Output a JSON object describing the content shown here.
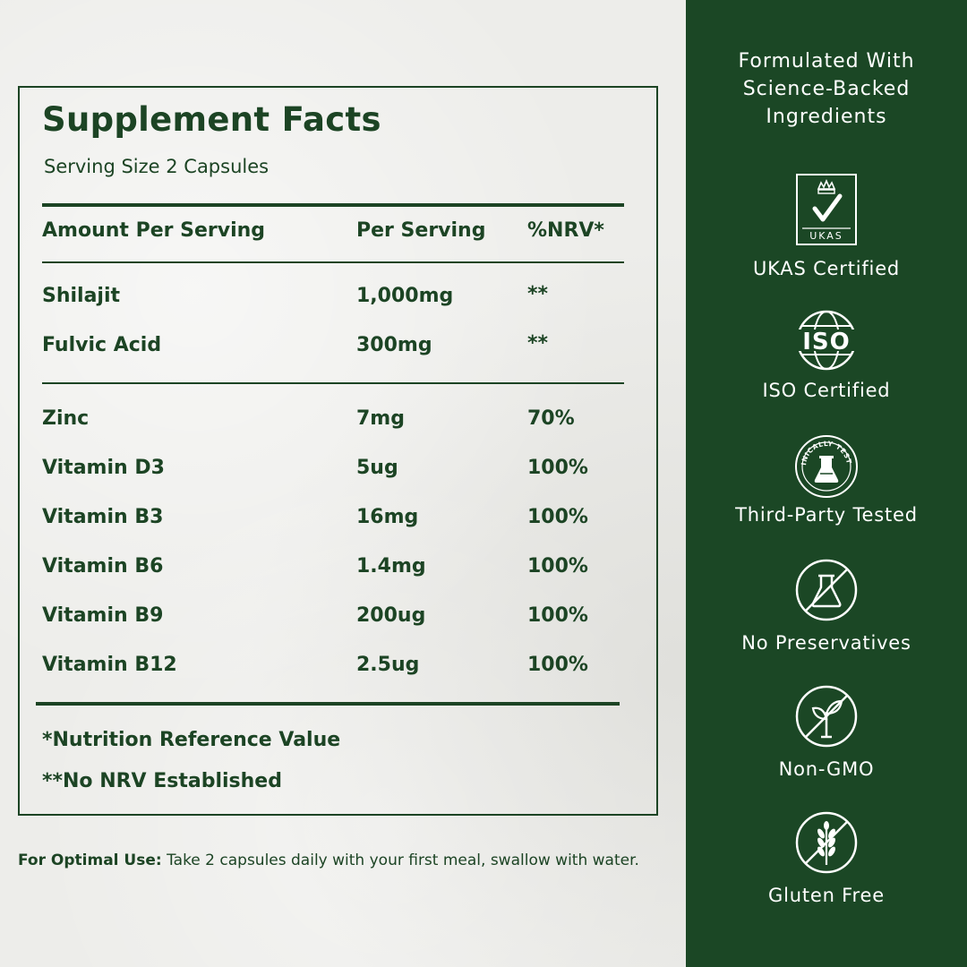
{
  "facts": {
    "title": "Supplement Facts",
    "serving_size": "Serving Size 2 Capsules",
    "headers": [
      "Amount Per Serving",
      "Per Serving",
      "%NRV*"
    ],
    "group1": [
      {
        "name": "Shilajit",
        "amount": "1,000mg",
        "nrv": "**"
      },
      {
        "name": "Fulvic Acid",
        "amount": "300mg",
        "nrv": "**"
      }
    ],
    "group2": [
      {
        "name": "Zinc",
        "amount": "7mg",
        "nrv": "70%"
      },
      {
        "name": "Vitamin D3",
        "amount": "5ug",
        "nrv": "100%"
      },
      {
        "name": "Vitamin B3",
        "amount": "16mg",
        "nrv": "100%"
      },
      {
        "name": "Vitamin B6",
        "amount": "1.4mg",
        "nrv": "100%"
      },
      {
        "name": "Vitamin B9",
        "amount": "200ug",
        "nrv": "100%"
      },
      {
        "name": "Vitamin B12",
        "amount": "2.5ug",
        "nrv": "100%"
      }
    ],
    "footnote1": "*Nutrition Reference Value",
    "footnote2": "**No NRV Established"
  },
  "usage": {
    "label": "For Optimal Use:",
    "text": "Take 2 capsules daily with your first meal, swallow with water."
  },
  "sidebar": {
    "title_lines": [
      "Formulated With",
      "Science-Backed",
      "Ingredients"
    ],
    "certs": [
      {
        "label": "UKAS Certified",
        "icon": "ukas-crown-check-icon",
        "badge_text": "UKAS"
      },
      {
        "label": "ISO Certified",
        "icon": "iso-globe-icon",
        "badge_text": "ISO"
      },
      {
        "label": "Third-Party Tested",
        "icon": "clinically-tested-icon",
        "badge_text": "CLINICALLY TESTED"
      },
      {
        "label": "No Preservatives",
        "icon": "no-preservatives-flask-icon"
      },
      {
        "label": "Non-GMO",
        "icon": "non-gmo-sprout-icon"
      },
      {
        "label": "Gluten Free",
        "icon": "gluten-free-wheat-icon"
      }
    ]
  },
  "colors": {
    "primary_green": "#1b4725",
    "text_green": "#1c4424",
    "background": "#ededea"
  }
}
